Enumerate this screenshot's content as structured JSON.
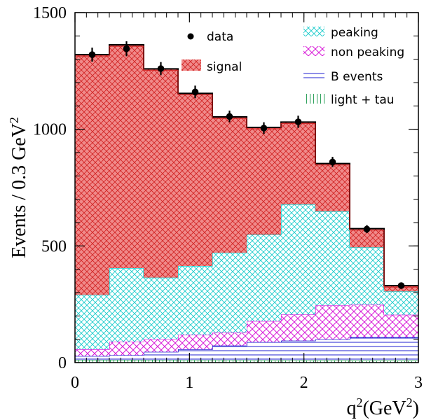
{
  "chart_data": {
    "type": "bar",
    "subtype": "stacked-histogram-with-data-points",
    "x_bin_edges": [
      0,
      0.3,
      0.6,
      0.9,
      1.2,
      1.5,
      1.8,
      2.1,
      2.4,
      2.7,
      3.0
    ],
    "xlabel_main": "q",
    "xlabel_sup1": "2",
    "xlabel_units": "(GeV",
    "xlabel_sup2": "2",
    "xlabel_close": ")",
    "ylabel_main": "Events / 0.3 GeV",
    "ylabel_sup": "2",
    "xlim": [
      0,
      3
    ],
    "ylim": [
      0,
      1500
    ],
    "x_ticks": [
      "0",
      "1",
      "2",
      "3"
    ],
    "x_tick_values": [
      0,
      1,
      2,
      3
    ],
    "y_ticks": [
      "0",
      "500",
      "1000",
      "1500"
    ],
    "y_tick_values": [
      0,
      500,
      1000,
      1500
    ],
    "series": [
      {
        "name": "light + tau",
        "hatch": "vertical",
        "color": "#2ca05a",
        "values": [
          12,
          12,
          12,
          11,
          11,
          10,
          10,
          10,
          9,
          9
        ]
      },
      {
        "name": "B events",
        "hatch": "horizontal",
        "color": "#1f1fd0",
        "values": [
          16,
          20,
          34,
          46,
          62,
          78,
          84,
          90,
          100,
          100
        ]
      },
      {
        "name": "non peaking",
        "hatch": "cross",
        "color": "#e020e0",
        "values": [
          29,
          57,
          55,
          62,
          55,
          90,
          112,
          145,
          139,
          96
        ]
      },
      {
        "name": "peaking",
        "hatch": "cross",
        "color": "#20d8d8",
        "values": [
          233,
          316,
          263,
          295,
          343,
          370,
          472,
          403,
          246,
          100
        ]
      },
      {
        "name": "signal",
        "hatch": "cross",
        "color": "#e02020",
        "fill": "#f08080",
        "values": [
          1030,
          957,
          895,
          740,
          582,
          460,
          353,
          205,
          80,
          25
        ]
      }
    ],
    "data": {
      "name": "data",
      "x": [
        0.15,
        0.45,
        0.75,
        1.05,
        1.35,
        1.65,
        1.95,
        2.25,
        2.55,
        2.85
      ],
      "y": [
        1320,
        1345,
        1260,
        1160,
        1055,
        1005,
        1032,
        860,
        572,
        330
      ],
      "err": [
        30,
        32,
        28,
        27,
        25,
        25,
        26,
        22,
        17,
        10
      ]
    },
    "legend": {
      "left": [
        "data",
        "signal"
      ],
      "right": [
        "peaking",
        "non peaking",
        "B events",
        "light + tau"
      ]
    }
  }
}
